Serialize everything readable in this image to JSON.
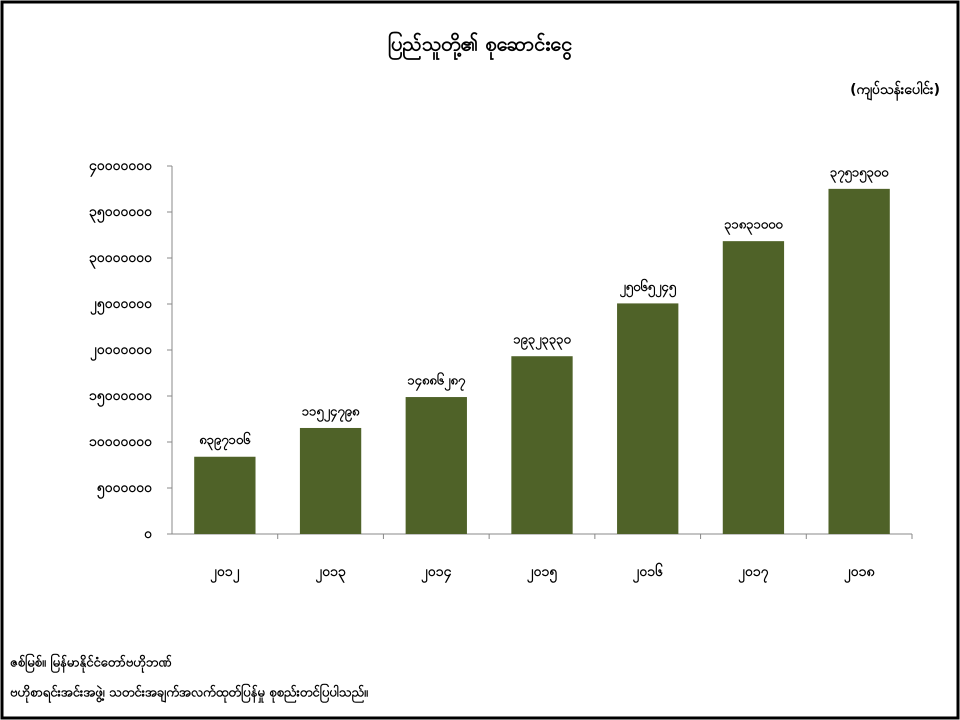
{
  "chart_data": {
    "type": "bar",
    "title": "ပြည်သူတို့၏ စုဆောင်းငွေ",
    "unit_label": "(ကျပ်သန်းပေါင်း)",
    "categories": [
      "၂၀၁၂",
      "၂၀၁၃",
      "၂၀၁၄",
      "၂၀၁၅",
      "၂၀၁၆",
      "၂၀၁၇",
      "၂၀၁၈"
    ],
    "values": [
      8397106,
      11524798,
      14886287,
      19323330,
      25065245,
      31831000,
      37515300
    ],
    "value_labels": [
      "၈၃၉၇၁၀၆",
      "၁၁၅၂၄၇၉၈",
      "၁၄၈၈၆၂၈၇",
      "၁၉၃၂၃၃၃၀",
      "၂၅၀၆၅၂၄၅",
      "၃၁၈၃၁၀၀၀",
      "၃၇၅၁၅၃၀၀"
    ],
    "color": "#4f6228",
    "ylim": [
      0,
      40000000
    ],
    "yticks": [
      {
        "value": 0,
        "label": "၀"
      },
      {
        "value": 5000000,
        "label": "၅၀၀၀၀၀၀"
      },
      {
        "value": 10000000,
        "label": "၁၀၀၀၀၀၀၀"
      },
      {
        "value": 15000000,
        "label": "၁၅၀၀၀၀၀၀"
      },
      {
        "value": 20000000,
        "label": "၂၀၀၀၀၀၀၀"
      },
      {
        "value": 25000000,
        "label": "၂၅၀၀၀၀၀၀"
      },
      {
        "value": 30000000,
        "label": "၃၀၀၀၀၀၀၀"
      },
      {
        "value": 35000000,
        "label": "၃၅၀၀၀၀၀၀"
      },
      {
        "value": 40000000,
        "label": "၄၀၀၀၀၀၀၀"
      }
    ],
    "grid": false,
    "source_lines": [
      "ဇစ်မြစ်။ မြန်မာနိုင်ငံတော်ဗဟိုဘဏ်",
      "ဗဟိုစာရင်းအင်းအဖွဲ့၊ သတင်းအချက်အလက်ထုတ်ပြန်မှု စုစည်းတင်ပြပါသည်။"
    ]
  }
}
